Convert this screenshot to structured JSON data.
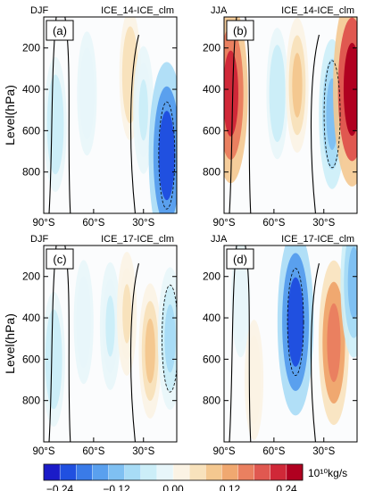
{
  "figure": {
    "y_axis_label": "Level(hPa)",
    "panels": [
      {
        "letter": "(a)",
        "season": "DJF",
        "title": "ICE_14-ICE_clm"
      },
      {
        "letter": "(b)",
        "season": "JJA",
        "title": "ICE_14-ICE_clm"
      },
      {
        "letter": "(c)",
        "season": "DJF",
        "title": "ICE_17-ICE_clm"
      },
      {
        "letter": "(d)",
        "season": "JJA",
        "title": "ICE_17-ICE_clm"
      }
    ],
    "colorbar": {
      "unit": "10¹⁰kg/s",
      "tick_labels": [
        "−0.24",
        "−0.12",
        "0.00",
        "0.12",
        "0.24"
      ],
      "colors": [
        "#1b1bc8",
        "#2050e0",
        "#3a7be8",
        "#5aa0ee",
        "#7fc0f2",
        "#a8dcf6",
        "#cceef8",
        "#e8f6fa",
        "#fbf3e4",
        "#f8e2bc",
        "#f4c890",
        "#f0a870",
        "#ea8060",
        "#e05850",
        "#d02838",
        "#b00020"
      ]
    }
  },
  "chart_data": [
    {
      "type": "heatmap",
      "panel": "(a)",
      "title": "ICE_14-ICE_clm",
      "season": "DJF",
      "ylabel": "Level(hPa)",
      "x_tick_labels": [
        "90°S",
        "60°S",
        "30°S"
      ],
      "x_ticks": [
        -90,
        -60,
        -30
      ],
      "y_tick_labels": [
        "200",
        "400",
        "600",
        "800"
      ],
      "y_ticks": [
        200,
        400,
        600,
        800
      ],
      "xlim": [
        -90,
        -10
      ],
      "ylim": [
        1000,
        50
      ],
      "colorbar_range": [
        -0.24,
        0.24
      ],
      "features": [
        {
          "lat": -83,
          "p": 570,
          "value": -0.06
        },
        {
          "lat": -64,
          "p": 420,
          "value": -0.03
        },
        {
          "lat": -38,
          "p": 330,
          "value": 0.05
        },
        {
          "lat": -30,
          "p": 500,
          "value": -0.04
        },
        {
          "lat": -16,
          "p": 720,
          "value": -0.2
        }
      ]
    },
    {
      "type": "heatmap",
      "panel": "(b)",
      "title": "ICE_14-ICE_clm",
      "season": "JJA",
      "x_tick_labels": [
        "90°S",
        "60°S",
        "30°S"
      ],
      "x_ticks": [
        -90,
        -60,
        -30
      ],
      "y_tick_labels": [
        "200",
        "400",
        "600",
        "800"
      ],
      "y_ticks": [
        200,
        400,
        600,
        800
      ],
      "xlim": [
        -90,
        -10
      ],
      "ylim": [
        1000,
        50
      ],
      "colorbar_range": [
        -0.24,
        0.24
      ],
      "features": [
        {
          "lat": -86,
          "p": 420,
          "value": 0.18
        },
        {
          "lat": -58,
          "p": 420,
          "value": -0.05
        },
        {
          "lat": -46,
          "p": 380,
          "value": 0.06
        },
        {
          "lat": -25,
          "p": 520,
          "value": -0.1
        },
        {
          "lat": -13,
          "p": 400,
          "value": 0.22
        }
      ]
    },
    {
      "type": "heatmap",
      "panel": "(c)",
      "title": "ICE_17-ICE_clm",
      "season": "DJF",
      "ylabel": "Level(hPa)",
      "x_tick_labels": [
        "90°S",
        "60°S",
        "30°S"
      ],
      "x_ticks": [
        -90,
        -60,
        -30
      ],
      "y_tick_labels": [
        "200",
        "400",
        "600",
        "800"
      ],
      "y_ticks": [
        200,
        400,
        600,
        800
      ],
      "xlim": [
        -90,
        -10
      ],
      "ylim": [
        1000,
        50
      ],
      "colorbar_range": [
        -0.24,
        0.24
      ],
      "features": [
        {
          "lat": -84,
          "p": 600,
          "value": -0.06
        },
        {
          "lat": -66,
          "p": 420,
          "value": -0.03
        },
        {
          "lat": -50,
          "p": 440,
          "value": -0.04
        },
        {
          "lat": -40,
          "p": 380,
          "value": 0.03
        },
        {
          "lat": -26,
          "p": 560,
          "value": 0.06
        },
        {
          "lat": -14,
          "p": 500,
          "value": -0.08
        }
      ]
    },
    {
      "type": "heatmap",
      "panel": "(d)",
      "title": "ICE_17-ICE_clm",
      "season": "JJA",
      "x_tick_labels": [
        "90°S",
        "60°S",
        "30°S"
      ],
      "x_ticks": [
        -90,
        -60,
        -30
      ],
      "y_tick_labels": [
        "200",
        "400",
        "600",
        "800"
      ],
      "y_ticks": [
        200,
        400,
        600,
        800
      ],
      "xlim": [
        -90,
        -10
      ],
      "ylim": [
        1000,
        50
      ],
      "colorbar_range": [
        -0.24,
        0.24
      ],
      "features": [
        {
          "lat": -80,
          "p": 300,
          "value": -0.02
        },
        {
          "lat": -72,
          "p": 700,
          "value": 0.02
        },
        {
          "lat": -47,
          "p": 420,
          "value": -0.2
        },
        {
          "lat": -24,
          "p": 520,
          "value": 0.14
        },
        {
          "lat": -12,
          "p": 230,
          "value": -0.1
        }
      ]
    }
  ]
}
